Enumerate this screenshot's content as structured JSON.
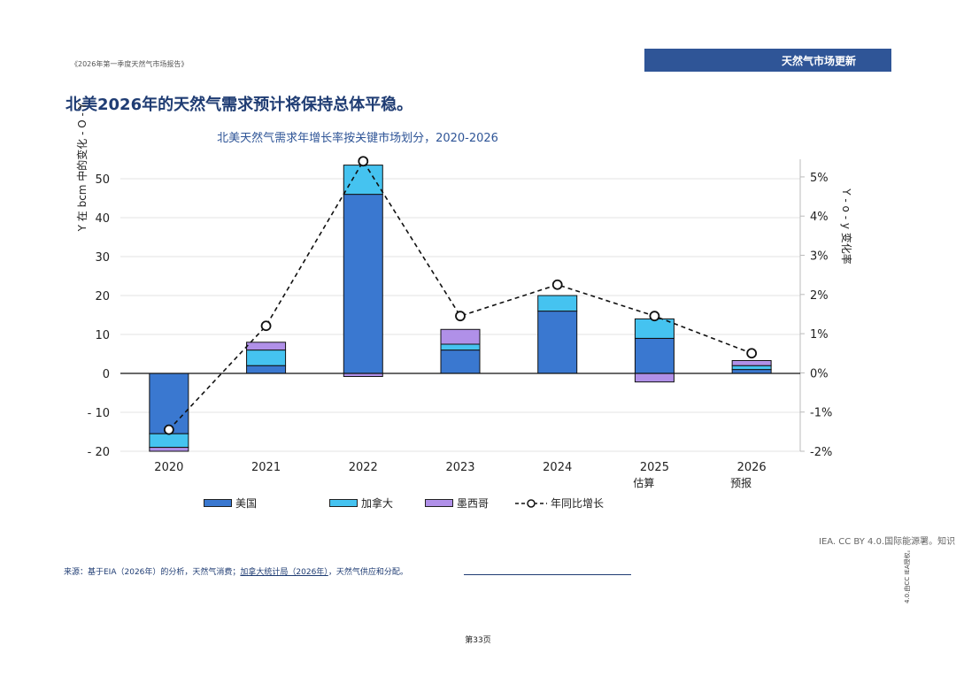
{
  "doc": {
    "header": "《2026年第一季度天然气市场报告》",
    "tag": "天然气市场更新",
    "page_title": "北美2026年的天然气需求预计将保持总体平稳。",
    "credit": "IEA. CC BY 4.0.国际能源署。知识",
    "source_prefix": "来源：基于EIA（2026年）的分析，天然气消费；",
    "source_link": "加拿大统计局（2026年）",
    "source_suffix": "，天然气供应和分配。",
    "side_license": "4.0.由CC IEA授权。",
    "page_number": "第33页"
  },
  "chart_data": {
    "type": "bar",
    "title": "北美天然气需求年增长率按关键市场划分，2020-2026",
    "ylabel": "Y 在 bcm 中的变化 - O - Y",
    "y2label": "Y - o - y 变化率",
    "categories": [
      "2020",
      "2021",
      "2022",
      "2023",
      "2024",
      "2025",
      "2026"
    ],
    "sublabels": [
      "",
      "",
      "",
      "",
      "",
      "估算",
      "预报"
    ],
    "ylim": [
      -20,
      55
    ],
    "yticks": [
      -20,
      -10,
      0,
      10,
      20,
      30,
      40,
      50
    ],
    "ytick_labels": [
      "- 20",
      "- 10",
      "0",
      "10",
      "20",
      "30",
      "40",
      "50"
    ],
    "y2lim": [
      -2,
      5.45
    ],
    "y2ticks": [
      -2,
      -1,
      0,
      1,
      2,
      3,
      4,
      5
    ],
    "y2tick_labels": [
      "-2%",
      "-1%",
      "0%",
      "1%",
      "2%",
      "3%",
      "4%",
      "5%"
    ],
    "series": [
      {
        "name": "美国",
        "color": "#3a78d0",
        "values": [
          -15.5,
          2.0,
          46.0,
          6.0,
          16.0,
          9.0,
          1.0
        ]
      },
      {
        "name": "加拿大",
        "color": "#45c3f0",
        "values": [
          -3.5,
          4.0,
          7.5,
          1.5,
          4.0,
          5.0,
          1.0
        ]
      },
      {
        "name": "墨西哥",
        "color": "#b090e8",
        "values": [
          -1.0,
          2.0,
          -0.8,
          3.8,
          0.0,
          -2.2,
          1.3
        ]
      }
    ],
    "line_series": {
      "name": "年同比增长",
      "unit": "%",
      "values": [
        -1.45,
        1.2,
        5.4,
        1.45,
        2.25,
        1.45,
        0.5
      ]
    }
  }
}
